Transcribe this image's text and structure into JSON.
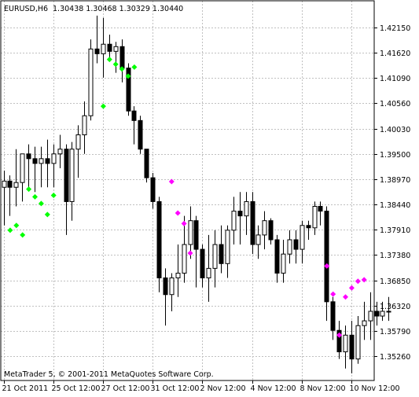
{
  "header": {
    "symbol": "EURUSD,H6",
    "ohlc": "1.30438 1.30468 1.30329 1.30440"
  },
  "footer": {
    "copyright": "MetaTrader 5, © 2001-2011 MetaQuotes Software Corp."
  },
  "colors": {
    "background": "#ffffff",
    "grid": "#c0c0c0",
    "candle_bull_fill": "#ffffff",
    "candle_bear_fill": "#000000",
    "candle_border": "#000000",
    "dot_below": "#00ff00",
    "dot_above": "#ff00ff"
  },
  "chart_data": {
    "type": "candlestick",
    "grid": true,
    "ylim": [
      1.3485,
      1.4245
    ],
    "y_ticks": [
      "1.42150",
      "1.41620",
      "1.41090",
      "1.40560",
      "1.40030",
      "1.39500",
      "1.38970",
      "1.38440",
      "1.37910",
      "1.37380",
      "1.36850",
      "1.36320",
      "1.35790",
      "1.35260"
    ],
    "x_tick_labels": [
      "21 Oct 2011",
      "25 Oct 12:00",
      "27 Oct 12:00",
      "31 Oct 12:00",
      "2 Nov 12:00",
      "4 Nov 12:00",
      "8 Nov 12:00",
      "10 Nov 12:00"
    ],
    "x_tick_bars": [
      0,
      8,
      16,
      24,
      32,
      40,
      48,
      56
    ],
    "candles": [
      {
        "o": 1.388,
        "h": 1.3915,
        "l": 1.38,
        "c": 1.3893
      },
      {
        "o": 1.3893,
        "h": 1.3905,
        "l": 1.382,
        "c": 1.388
      },
      {
        "o": 1.388,
        "h": 1.396,
        "l": 1.384,
        "c": 1.389
      },
      {
        "o": 1.389,
        "h": 1.3945,
        "l": 1.385,
        "c": 1.395
      },
      {
        "o": 1.395,
        "h": 1.397,
        "l": 1.388,
        "c": 1.394
      },
      {
        "o": 1.394,
        "h": 1.3965,
        "l": 1.387,
        "c": 1.393
      },
      {
        "o": 1.393,
        "h": 1.3965,
        "l": 1.388,
        "c": 1.394
      },
      {
        "o": 1.394,
        "h": 1.398,
        "l": 1.388,
        "c": 1.393
      },
      {
        "o": 1.393,
        "h": 1.397,
        "l": 1.388,
        "c": 1.395
      },
      {
        "o": 1.395,
        "h": 1.399,
        "l": 1.392,
        "c": 1.396
      },
      {
        "o": 1.396,
        "h": 1.397,
        "l": 1.378,
        "c": 1.385
      },
      {
        "o": 1.385,
        "h": 1.3975,
        "l": 1.381,
        "c": 1.396
      },
      {
        "o": 1.396,
        "h": 1.401,
        "l": 1.39,
        "c": 1.399
      },
      {
        "o": 1.399,
        "h": 1.406,
        "l": 1.395,
        "c": 1.403
      },
      {
        "o": 1.403,
        "h": 1.419,
        "l": 1.402,
        "c": 1.417
      },
      {
        "o": 1.417,
        "h": 1.424,
        "l": 1.414,
        "c": 1.416
      },
      {
        "o": 1.416,
        "h": 1.4235,
        "l": 1.411,
        "c": 1.418
      },
      {
        "o": 1.418,
        "h": 1.42,
        "l": 1.415,
        "c": 1.4165
      },
      {
        "o": 1.4165,
        "h": 1.4185,
        "l": 1.412,
        "c": 1.4175
      },
      {
        "o": 1.4175,
        "h": 1.419,
        "l": 1.41,
        "c": 1.413
      },
      {
        "o": 1.413,
        "h": 1.414,
        "l": 1.403,
        "c": 1.404
      },
      {
        "o": 1.404,
        "h": 1.405,
        "l": 1.397,
        "c": 1.402
      },
      {
        "o": 1.402,
        "h": 1.403,
        "l": 1.395,
        "c": 1.396
      },
      {
        "o": 1.396,
        "h": 1.396,
        "l": 1.389,
        "c": 1.39
      },
      {
        "o": 1.39,
        "h": 1.391,
        "l": 1.3835,
        "c": 1.385
      },
      {
        "o": 1.385,
        "h": 1.386,
        "l": 1.366,
        "c": 1.369
      },
      {
        "o": 1.369,
        "h": 1.371,
        "l": 1.359,
        "c": 1.3655
      },
      {
        "o": 1.3655,
        "h": 1.37,
        "l": 1.362,
        "c": 1.369
      },
      {
        "o": 1.369,
        "h": 1.376,
        "l": 1.365,
        "c": 1.37
      },
      {
        "o": 1.37,
        "h": 1.382,
        "l": 1.368,
        "c": 1.376
      },
      {
        "o": 1.376,
        "h": 1.384,
        "l": 1.373,
        "c": 1.381
      },
      {
        "o": 1.381,
        "h": 1.382,
        "l": 1.367,
        "c": 1.375
      },
      {
        "o": 1.375,
        "h": 1.376,
        "l": 1.367,
        "c": 1.369
      },
      {
        "o": 1.369,
        "h": 1.378,
        "l": 1.364,
        "c": 1.371
      },
      {
        "o": 1.371,
        "h": 1.379,
        "l": 1.367,
        "c": 1.376
      },
      {
        "o": 1.376,
        "h": 1.38,
        "l": 1.37,
        "c": 1.372
      },
      {
        "o": 1.372,
        "h": 1.38,
        "l": 1.369,
        "c": 1.379
      },
      {
        "o": 1.379,
        "h": 1.386,
        "l": 1.376,
        "c": 1.383
      },
      {
        "o": 1.383,
        "h": 1.387,
        "l": 1.376,
        "c": 1.382
      },
      {
        "o": 1.382,
        "h": 1.387,
        "l": 1.378,
        "c": 1.385
      },
      {
        "o": 1.385,
        "h": 1.387,
        "l": 1.374,
        "c": 1.376
      },
      {
        "o": 1.376,
        "h": 1.38,
        "l": 1.373,
        "c": 1.378
      },
      {
        "o": 1.378,
        "h": 1.383,
        "l": 1.375,
        "c": 1.381
      },
      {
        "o": 1.381,
        "h": 1.3815,
        "l": 1.376,
        "c": 1.377
      },
      {
        "o": 1.377,
        "h": 1.378,
        "l": 1.368,
        "c": 1.37
      },
      {
        "o": 1.37,
        "h": 1.377,
        "l": 1.368,
        "c": 1.374
      },
      {
        "o": 1.374,
        "h": 1.379,
        "l": 1.372,
        "c": 1.377
      },
      {
        "o": 1.377,
        "h": 1.379,
        "l": 1.372,
        "c": 1.375
      },
      {
        "o": 1.375,
        "h": 1.381,
        "l": 1.372,
        "c": 1.38
      },
      {
        "o": 1.38,
        "h": 1.381,
        "l": 1.377,
        "c": 1.3795
      },
      {
        "o": 1.3795,
        "h": 1.385,
        "l": 1.378,
        "c": 1.384
      },
      {
        "o": 1.384,
        "h": 1.385,
        "l": 1.38,
        "c": 1.383
      },
      {
        "o": 1.383,
        "h": 1.384,
        "l": 1.36,
        "c": 1.364
      },
      {
        "o": 1.364,
        "h": 1.365,
        "l": 1.356,
        "c": 1.358
      },
      {
        "o": 1.358,
        "h": 1.36,
        "l": 1.352,
        "c": 1.3535
      },
      {
        "o": 1.3535,
        "h": 1.359,
        "l": 1.35,
        "c": 1.357
      },
      {
        "o": 1.357,
        "h": 1.36,
        "l": 1.349,
        "c": 1.352
      },
      {
        "o": 1.352,
        "h": 1.361,
        "l": 1.351,
        "c": 1.359
      },
      {
        "o": 1.359,
        "h": 1.364,
        "l": 1.356,
        "c": 1.36
      },
      {
        "o": 1.36,
        "h": 1.366,
        "l": 1.356,
        "c": 1.362
      },
      {
        "o": 1.362,
        "h": 1.364,
        "l": 1.359,
        "c": 1.361
      },
      {
        "o": 1.361,
        "h": 1.364,
        "l": 1.36,
        "c": 1.362
      },
      {
        "o": 1.362,
        "h": 1.365,
        "l": 1.36,
        "c": 1.362
      }
    ],
    "dots_below": [
      {
        "i": 1,
        "v": 1.379
      },
      {
        "i": 2,
        "v": 1.38
      },
      {
        "i": 3,
        "v": 1.378
      },
      {
        "i": 4,
        "v": 1.3876
      },
      {
        "i": 5,
        "v": 1.386
      },
      {
        "i": 6,
        "v": 1.3846
      },
      {
        "i": 7,
        "v": 1.3823
      },
      {
        "i": 8,
        "v": 1.3863
      },
      {
        "i": 16,
        "v": 1.405
      },
      {
        "i": 17,
        "v": 1.4148
      },
      {
        "i": 18,
        "v": 1.4138
      },
      {
        "i": 19,
        "v": 1.4128
      },
      {
        "i": 20,
        "v": 1.4113
      },
      {
        "i": 21,
        "v": 1.4132
      }
    ],
    "dots_above": [
      {
        "i": 27,
        "v": 1.3892
      },
      {
        "i": 28,
        "v": 1.3826
      },
      {
        "i": 29,
        "v": 1.3804
      },
      {
        "i": 30,
        "v": 1.3742
      },
      {
        "i": 52,
        "v": 1.3715
      },
      {
        "i": 53,
        "v": 1.3656
      },
      {
        "i": 54,
        "v": 1.357
      },
      {
        "i": 55,
        "v": 1.365
      },
      {
        "i": 56,
        "v": 1.3669
      },
      {
        "i": 57,
        "v": 1.3683
      },
      {
        "i": 58,
        "v": 1.3686
      }
    ]
  }
}
